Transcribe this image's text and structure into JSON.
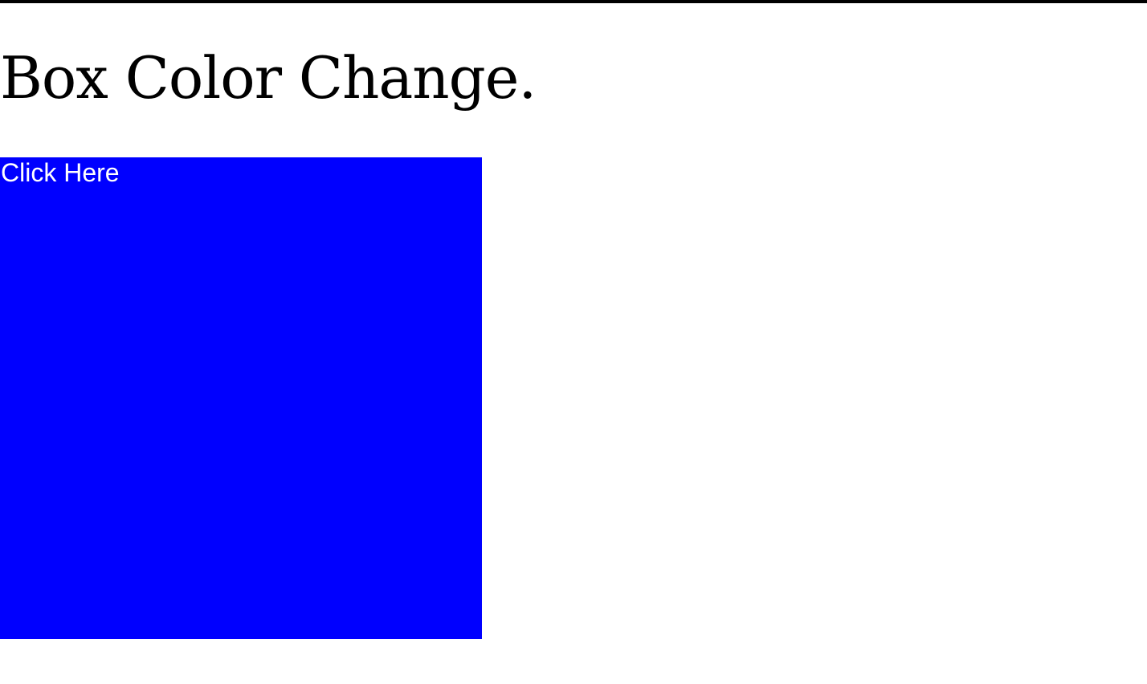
{
  "page": {
    "title": "Box Color Change."
  },
  "box": {
    "label": "Click Here",
    "color": "#0000ff",
    "text_color": "#ffffff"
  },
  "colors": {
    "background": "#ffffff",
    "rule": "#000000",
    "title": "#000000"
  }
}
